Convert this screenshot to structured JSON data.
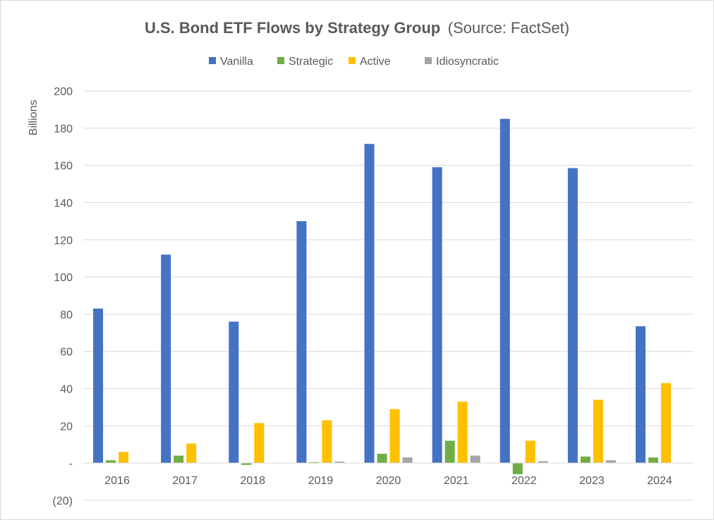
{
  "chart_data": {
    "type": "bar",
    "title": "U.S. Bond ETF Flows by Strategy Group",
    "subtitle": "(Source: FactSet)",
    "xlabel": "",
    "ylabel": "Billions",
    "ylim": [
      -20,
      200
    ],
    "yticks": [
      200,
      180,
      160,
      140,
      120,
      100,
      80,
      60,
      40,
      20,
      0,
      -20
    ],
    "ytick_labels": [
      "200",
      "180",
      "160",
      "140",
      "120",
      "100",
      "80",
      "60",
      "40",
      "20",
      "-",
      "(20)"
    ],
    "grid": true,
    "legend_position": "top",
    "categories": [
      "2016",
      "2017",
      "2018",
      "2019",
      "2020",
      "2021",
      "2022",
      "2023",
      "2024"
    ],
    "series": [
      {
        "name": "Vanilla",
        "color": "#4472c4",
        "values": [
          83,
          112,
          76,
          130,
          171.5,
          159,
          185,
          158.5,
          73.5
        ]
      },
      {
        "name": "Strategic",
        "color": "#70ad47",
        "values": [
          1.5,
          4,
          -1,
          0.5,
          5,
          12,
          -6,
          3.5,
          3
        ]
      },
      {
        "name": "Active",
        "color": "#ffc000",
        "values": [
          6,
          10.5,
          21.5,
          23,
          29,
          33,
          12,
          34,
          43
        ]
      },
      {
        "name": "Idiosyncratic",
        "color": "#a5a5a5",
        "values": [
          0,
          0,
          0,
          0.8,
          3,
          4,
          1,
          1.5,
          0
        ]
      }
    ]
  }
}
